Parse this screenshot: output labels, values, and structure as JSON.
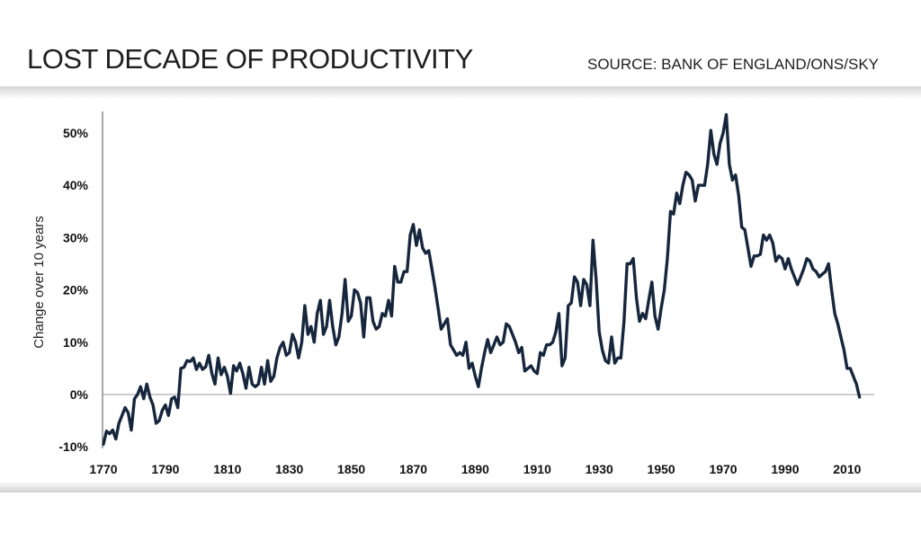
{
  "header": {
    "title": "LOST DECADE OF PRODUCTIVITY",
    "source": "SOURCE: BANK OF ENGLAND/ONS/SKY"
  },
  "colors": {
    "line": "#16263d",
    "axis": "#555555",
    "zero_line": "#9a9a9a"
  },
  "chart_data": {
    "type": "line",
    "title": "LOST DECADE OF PRODUCTIVITY",
    "xlabel": "",
    "ylabel": "Change over 10 years",
    "xlim": [
      1770,
      2018
    ],
    "ylim": [
      -10,
      53
    ],
    "x_ticks": [
      1770,
      1790,
      1810,
      1830,
      1850,
      1870,
      1890,
      1910,
      1930,
      1950,
      1970,
      1990,
      2010
    ],
    "y_ticks": [
      {
        "value": -10,
        "label": "-10%"
      },
      {
        "value": 0,
        "label": "0%"
      },
      {
        "value": 10,
        "label": "10%"
      },
      {
        "value": 20,
        "label": "20%"
      },
      {
        "value": 30,
        "label": "30%"
      },
      {
        "value": 40,
        "label": "40%"
      },
      {
        "value": 50,
        "label": "50%"
      }
    ],
    "series": [
      {
        "name": "Change over 10 years",
        "points": [
          [
            1770,
            -9.5
          ],
          [
            1771,
            -7
          ],
          [
            1772,
            -7.5
          ],
          [
            1773,
            -6.8
          ],
          [
            1774,
            -8.5
          ],
          [
            1775,
            -5.5
          ],
          [
            1776,
            -4
          ],
          [
            1777,
            -2.5
          ],
          [
            1778,
            -3.5
          ],
          [
            1779,
            -6.8
          ],
          [
            1780,
            -0.8
          ],
          [
            1781,
            0
          ],
          [
            1782,
            1.5
          ],
          [
            1783,
            -0.8
          ],
          [
            1784,
            2
          ],
          [
            1785,
            -0.5
          ],
          [
            1786,
            -2
          ],
          [
            1787,
            -5.5
          ],
          [
            1788,
            -5
          ],
          [
            1789,
            -3
          ],
          [
            1790,
            -2
          ],
          [
            1791,
            -4
          ],
          [
            1792,
            -0.8
          ],
          [
            1793,
            -0.5
          ],
          [
            1794,
            -2.5
          ],
          [
            1795,
            5
          ],
          [
            1796,
            5.2
          ],
          [
            1797,
            6.5
          ],
          [
            1798,
            6.3
          ],
          [
            1799,
            7
          ],
          [
            1800,
            4.8
          ],
          [
            1801,
            6
          ],
          [
            1802,
            4.8
          ],
          [
            1803,
            5.3
          ],
          [
            1804,
            7.5
          ],
          [
            1805,
            4
          ],
          [
            1806,
            2
          ],
          [
            1807,
            7
          ],
          [
            1808,
            3.8
          ],
          [
            1809,
            5.2
          ],
          [
            1810,
            3.5
          ],
          [
            1811,
            0.2
          ],
          [
            1812,
            5.5
          ],
          [
            1813,
            4.5
          ],
          [
            1814,
            6
          ],
          [
            1815,
            4
          ],
          [
            1816,
            1.2
          ],
          [
            1817,
            5.2
          ],
          [
            1818,
            2
          ],
          [
            1819,
            1.5
          ],
          [
            1820,
            2
          ],
          [
            1821,
            5.2
          ],
          [
            1822,
            2
          ],
          [
            1823,
            6.5
          ],
          [
            1824,
            2.5
          ],
          [
            1825,
            3.5
          ],
          [
            1826,
            7
          ],
          [
            1827,
            9
          ],
          [
            1828,
            10
          ],
          [
            1829,
            7.5
          ],
          [
            1830,
            8
          ],
          [
            1831,
            11.5
          ],
          [
            1832,
            10
          ],
          [
            1833,
            7
          ],
          [
            1834,
            10
          ],
          [
            1835,
            17
          ],
          [
            1836,
            11.5
          ],
          [
            1837,
            13
          ],
          [
            1838,
            10
          ],
          [
            1839,
            15.5
          ],
          [
            1840,
            18
          ],
          [
            1841,
            11.5
          ],
          [
            1842,
            13
          ],
          [
            1843,
            18
          ],
          [
            1844,
            13
          ],
          [
            1845,
            9.5
          ],
          [
            1846,
            11
          ],
          [
            1847,
            15.5
          ],
          [
            1848,
            22
          ],
          [
            1849,
            14
          ],
          [
            1850,
            15
          ],
          [
            1851,
            20
          ],
          [
            1852,
            19.5
          ],
          [
            1853,
            17.5
          ],
          [
            1854,
            11
          ],
          [
            1855,
            18.5
          ],
          [
            1856,
            18.5
          ],
          [
            1857,
            14
          ],
          [
            1858,
            12.5
          ],
          [
            1859,
            13
          ],
          [
            1860,
            15.5
          ],
          [
            1861,
            15
          ],
          [
            1862,
            18
          ],
          [
            1863,
            15
          ],
          [
            1864,
            24.5
          ],
          [
            1865,
            21.5
          ],
          [
            1866,
            21.5
          ],
          [
            1867,
            23.5
          ],
          [
            1868,
            23.5
          ],
          [
            1869,
            30.5
          ],
          [
            1870,
            32.5
          ],
          [
            1871,
            28.5
          ],
          [
            1872,
            31.5
          ],
          [
            1873,
            28
          ],
          [
            1874,
            27
          ],
          [
            1875,
            27.5
          ],
          [
            1876,
            24
          ],
          [
            1877,
            20.5
          ],
          [
            1878,
            16.5
          ],
          [
            1879,
            12.5
          ],
          [
            1880,
            13.5
          ],
          [
            1881,
            14.5
          ],
          [
            1882,
            9.5
          ],
          [
            1883,
            8.5
          ],
          [
            1884,
            7.5
          ],
          [
            1885,
            8
          ],
          [
            1886,
            7.5
          ],
          [
            1887,
            10
          ],
          [
            1888,
            5
          ],
          [
            1889,
            6
          ],
          [
            1890,
            3.5
          ],
          [
            1891,
            1.5
          ],
          [
            1892,
            5
          ],
          [
            1893,
            8
          ],
          [
            1894,
            10.5
          ],
          [
            1895,
            8
          ],
          [
            1896,
            9.5
          ],
          [
            1897,
            11
          ],
          [
            1898,
            9.5
          ],
          [
            1899,
            10
          ],
          [
            1900,
            13.5
          ],
          [
            1901,
            13
          ],
          [
            1902,
            11.5
          ],
          [
            1903,
            10
          ],
          [
            1904,
            8
          ],
          [
            1905,
            9
          ],
          [
            1906,
            4.5
          ],
          [
            1907,
            5
          ],
          [
            1908,
            5.5
          ],
          [
            1909,
            4.5
          ],
          [
            1910,
            4
          ],
          [
            1911,
            8
          ],
          [
            1912,
            7.5
          ],
          [
            1913,
            9.5
          ],
          [
            1914,
            9.5
          ],
          [
            1915,
            10
          ],
          [
            1916,
            12
          ],
          [
            1917,
            15.5
          ],
          [
            1918,
            5.5
          ],
          [
            1919,
            7
          ],
          [
            1920,
            17
          ],
          [
            1921,
            17.5
          ],
          [
            1922,
            22.5
          ],
          [
            1923,
            21.5
          ],
          [
            1924,
            17
          ],
          [
            1925,
            22
          ],
          [
            1926,
            21
          ],
          [
            1927,
            17
          ],
          [
            1928,
            29.5
          ],
          [
            1929,
            22
          ],
          [
            1930,
            12
          ],
          [
            1931,
            8.5
          ],
          [
            1932,
            6.5
          ],
          [
            1933,
            6
          ],
          [
            1934,
            11
          ],
          [
            1935,
            6
          ],
          [
            1936,
            7
          ],
          [
            1937,
            7
          ],
          [
            1938,
            14
          ],
          [
            1939,
            25
          ],
          [
            1940,
            25
          ],
          [
            1941,
            26
          ],
          [
            1942,
            18.5
          ],
          [
            1943,
            14
          ],
          [
            1944,
            15.5
          ],
          [
            1945,
            14.5
          ],
          [
            1946,
            18
          ],
          [
            1947,
            21.5
          ],
          [
            1948,
            15
          ],
          [
            1949,
            12.5
          ],
          [
            1950,
            16.5
          ],
          [
            1951,
            20
          ],
          [
            1952,
            26
          ],
          [
            1953,
            35
          ],
          [
            1954,
            34.5
          ],
          [
            1955,
            38.5
          ],
          [
            1956,
            36.5
          ],
          [
            1957,
            40
          ],
          [
            1958,
            42.5
          ],
          [
            1959,
            42
          ],
          [
            1960,
            41
          ],
          [
            1961,
            37
          ],
          [
            1962,
            40
          ],
          [
            1963,
            40
          ],
          [
            1964,
            40
          ],
          [
            1965,
            44
          ],
          [
            1966,
            50.5
          ],
          [
            1967,
            46
          ],
          [
            1968,
            44
          ],
          [
            1969,
            48
          ],
          [
            1970,
            50
          ],
          [
            1971,
            53.5
          ],
          [
            1972,
            44
          ],
          [
            1973,
            41
          ],
          [
            1974,
            42
          ],
          [
            1975,
            38
          ],
          [
            1976,
            32
          ],
          [
            1977,
            31.5
          ],
          [
            1978,
            28
          ],
          [
            1979,
            24.5
          ],
          [
            1980,
            26.5
          ],
          [
            1981,
            26.5
          ],
          [
            1982,
            26.8
          ],
          [
            1983,
            30.5
          ],
          [
            1984,
            29.5
          ],
          [
            1985,
            30.5
          ],
          [
            1986,
            29
          ],
          [
            1987,
            25.5
          ],
          [
            1988,
            26.5
          ],
          [
            1989,
            26
          ],
          [
            1990,
            24
          ],
          [
            1991,
            26
          ],
          [
            1992,
            24
          ],
          [
            1993,
            22.5
          ],
          [
            1994,
            21
          ],
          [
            1995,
            22.5
          ],
          [
            1996,
            24
          ],
          [
            1997,
            26
          ],
          [
            1998,
            25.5
          ],
          [
            1999,
            24
          ],
          [
            2000,
            23.5
          ],
          [
            2001,
            22.5
          ],
          [
            2002,
            23
          ],
          [
            2003,
            23.5
          ],
          [
            2004,
            25
          ],
          [
            2005,
            20
          ],
          [
            2006,
            15.5
          ],
          [
            2007,
            13.5
          ],
          [
            2008,
            11
          ],
          [
            2009,
            8.5
          ],
          [
            2010,
            5
          ],
          [
            2011,
            5
          ],
          [
            2012,
            3.5
          ],
          [
            2013,
            2
          ],
          [
            2014,
            -0.5
          ]
        ]
      }
    ]
  }
}
